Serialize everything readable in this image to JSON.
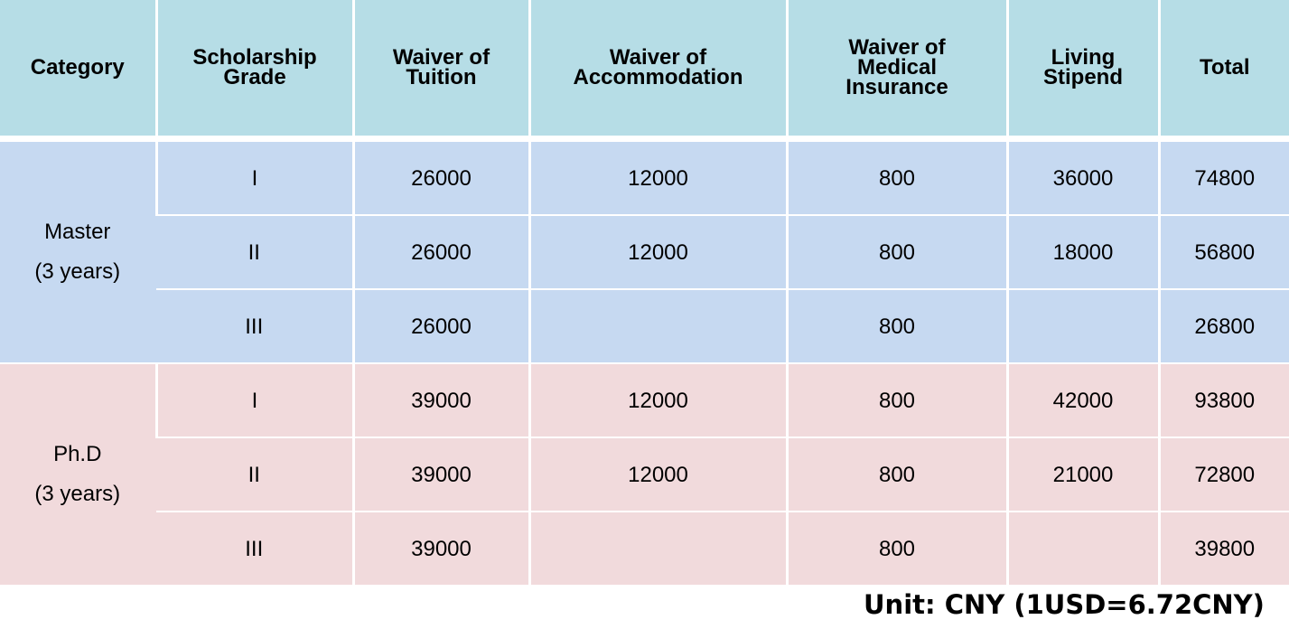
{
  "headers": [
    "Category",
    "Scholarship\nGrade",
    "Waiver of\nTuition",
    "Waiver of\nAccommodation",
    "Waiver of\nMedical\nInsurance",
    "Living\nStipend",
    "Total"
  ],
  "master": {
    "category": "Master\n(3 years)",
    "rows": [
      {
        "grade": "I",
        "tuition": "26000",
        "accommodation": "12000",
        "insurance": "800",
        "stipend": "36000",
        "total": "74800"
      },
      {
        "grade": "II",
        "tuition": "26000",
        "accommodation": "12000",
        "insurance": "800",
        "stipend": "18000",
        "total": "56800"
      },
      {
        "grade": "III",
        "tuition": "26000",
        "accommodation": "",
        "insurance": "800",
        "stipend": "",
        "total": "26800"
      }
    ]
  },
  "phd": {
    "category": "Ph.D\n(3 years)",
    "rows": [
      {
        "grade": "I",
        "tuition": "39000",
        "accommodation": "12000",
        "insurance": "800",
        "stipend": "42000",
        "total": "93800"
      },
      {
        "grade": "II",
        "tuition": "39000",
        "accommodation": "12000",
        "insurance": "800",
        "stipend": "21000",
        "total": "72800"
      },
      {
        "grade": "III",
        "tuition": "39000",
        "accommodation": "",
        "insurance": "800",
        "stipend": "",
        "total": "39800"
      }
    ]
  },
  "unit_note": "Unit: CNY (1USD=6.72CNY)",
  "colors": {
    "header_bg": "#b6dde6",
    "master_bg": "#c6d9f1",
    "phd_bg": "#f1dadc"
  }
}
